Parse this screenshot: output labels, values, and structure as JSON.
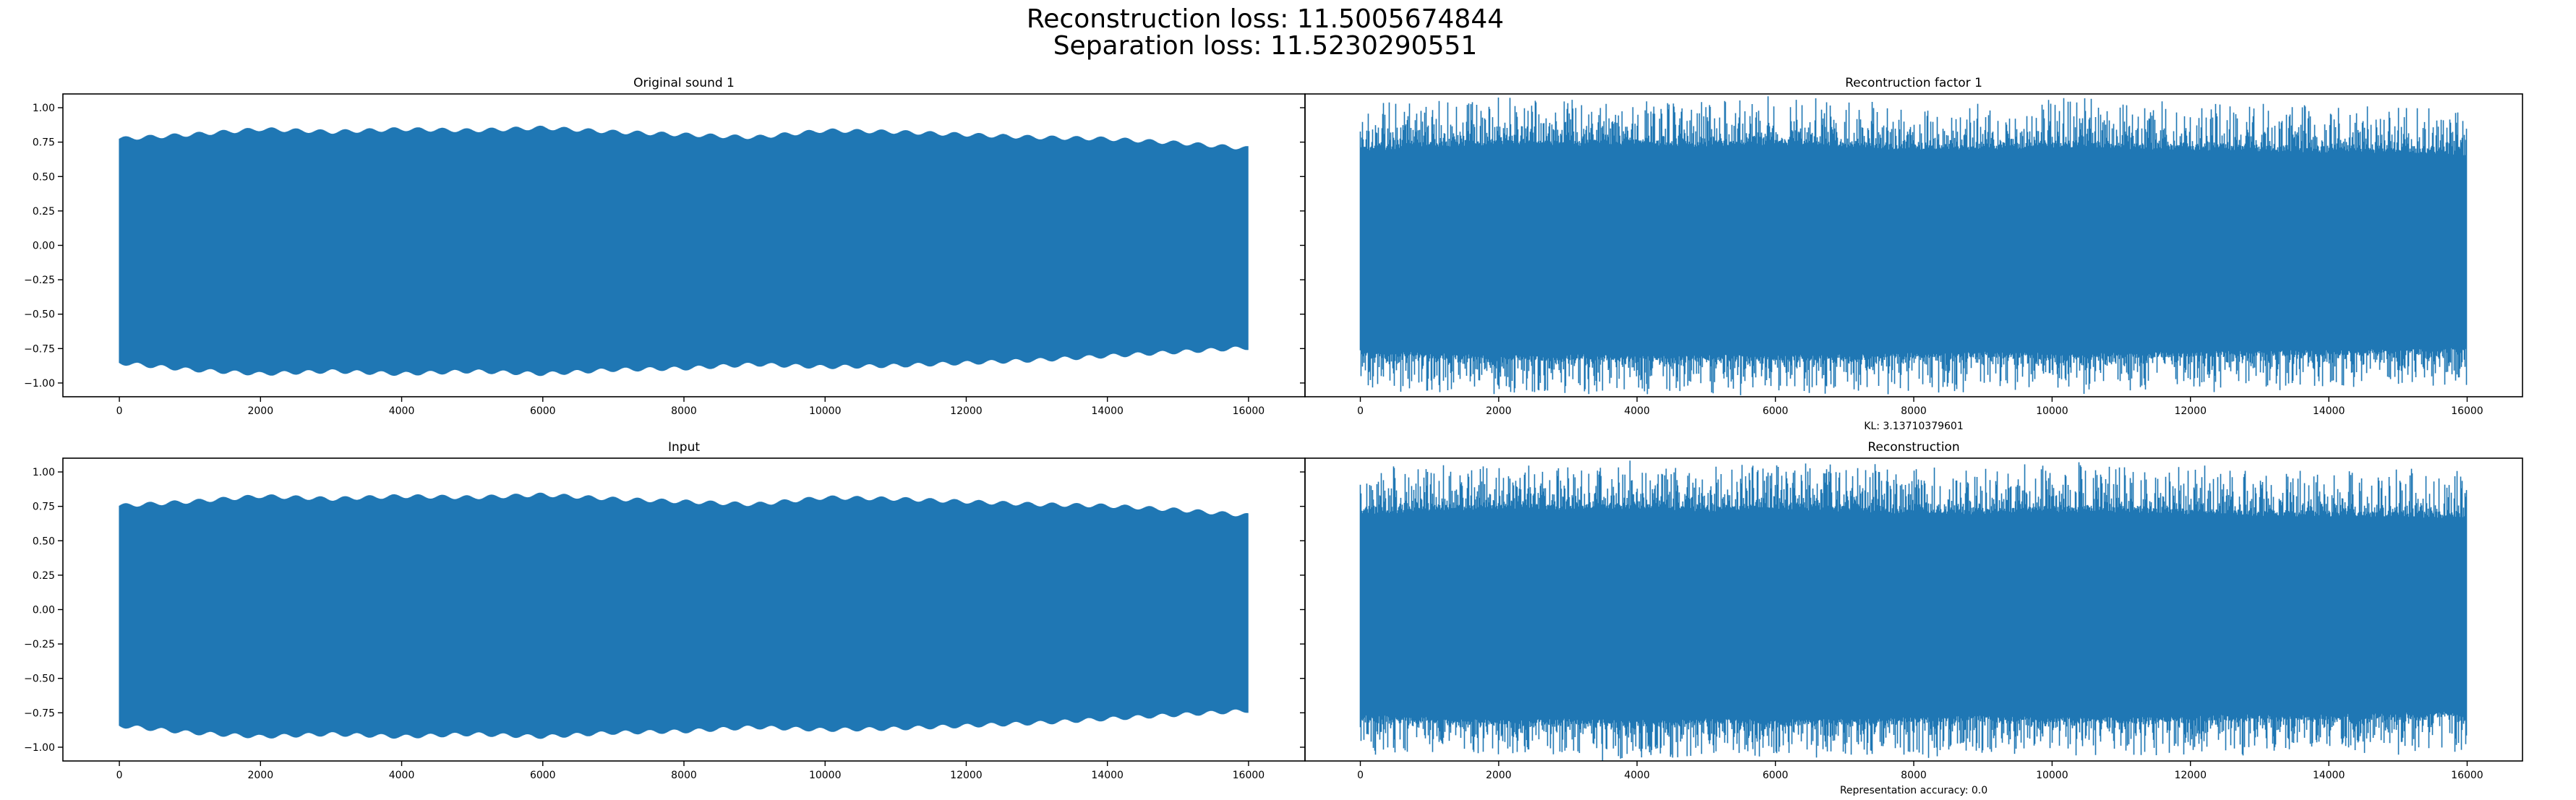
{
  "suptitle": {
    "line1": "Reconstruction loss: 11.5005674844",
    "line2": "Separation loss: 11.5230290551"
  },
  "colors": {
    "series": "#1f77b4",
    "axes": "#000000",
    "background": "#ffffff"
  },
  "chart_data": [
    {
      "id": "orig",
      "type": "line",
      "title": "Original sound 1",
      "xlabel": "",
      "ylabel": "",
      "n_samples": 16000,
      "xlim": [
        -800,
        16800
      ],
      "ylim": [
        -1.1,
        1.1
      ],
      "xticks": [
        0,
        2000,
        4000,
        6000,
        8000,
        10000,
        12000,
        14000,
        16000
      ],
      "yticks": [
        -1.0,
        -0.75,
        -0.5,
        -0.25,
        0.0,
        0.25,
        0.5,
        0.75,
        1.0
      ],
      "ytick_labels": [
        "−1.00",
        "−0.75",
        "−0.50",
        "−0.25",
        "0.00",
        "0.25",
        "0.50",
        "0.75",
        "1.00"
      ],
      "envelope_x": [
        0,
        1000,
        2000,
        3000,
        4000,
        5000,
        6000,
        7000,
        8000,
        9000,
        10000,
        11000,
        12000,
        13000,
        14000,
        15000,
        16000
      ],
      "envelope_upper": [
        0.79,
        0.82,
        0.86,
        0.84,
        0.86,
        0.85,
        0.87,
        0.84,
        0.82,
        0.8,
        0.85,
        0.84,
        0.82,
        0.8,
        0.79,
        0.76,
        0.72
      ],
      "envelope_lower": [
        -0.87,
        -0.92,
        -0.95,
        -0.93,
        -0.95,
        -0.93,
        -0.95,
        -0.92,
        -0.91,
        -0.88,
        -0.9,
        -0.89,
        -0.87,
        -0.85,
        -0.82,
        -0.79,
        -0.76
      ],
      "grid": false,
      "legend": "none",
      "show_yticklabels": true
    },
    {
      "id": "recfac",
      "type": "line",
      "title": "Recontruction factor 1",
      "xlabel": "KL: 3.13710379601",
      "ylabel": "",
      "n_samples": 16000,
      "xlim": [
        -800,
        16800
      ],
      "ylim": [
        -1.1,
        1.1
      ],
      "xticks": [
        0,
        2000,
        4000,
        6000,
        8000,
        10000,
        12000,
        14000,
        16000
      ],
      "envelope_x": [
        0,
        1000,
        2000,
        3000,
        4000,
        5000,
        6000,
        7000,
        8000,
        9000,
        10000,
        11000,
        12000,
        13000,
        14000,
        15000,
        16000
      ],
      "envelope_upper": [
        0.75,
        0.78,
        0.8,
        0.79,
        0.8,
        0.78,
        0.8,
        0.78,
        0.76,
        0.76,
        0.78,
        0.77,
        0.76,
        0.75,
        0.74,
        0.74,
        0.72
      ],
      "envelope_lower": [
        -0.82,
        -0.84,
        -0.86,
        -0.85,
        -0.86,
        -0.85,
        -0.86,
        -0.85,
        -0.84,
        -0.83,
        -0.84,
        -0.84,
        -0.83,
        -0.82,
        -0.82,
        -0.81,
        -0.8
      ],
      "grid": false,
      "legend": "none",
      "show_yticklabels": false
    },
    {
      "id": "input",
      "type": "line",
      "title": "Input",
      "xlabel": "",
      "ylabel": "",
      "n_samples": 16000,
      "xlim": [
        -800,
        16800
      ],
      "ylim": [
        -1.1,
        1.1
      ],
      "xticks": [
        0,
        2000,
        4000,
        6000,
        8000,
        10000,
        12000,
        14000,
        16000
      ],
      "yticks": [
        -1.0,
        -0.75,
        -0.5,
        -0.25,
        0.0,
        0.25,
        0.5,
        0.75,
        1.0
      ],
      "ytick_labels": [
        "−1.00",
        "−0.75",
        "−0.50",
        "−0.25",
        "0.00",
        "0.25",
        "0.50",
        "0.75",
        "1.00"
      ],
      "envelope_x": [
        0,
        1000,
        2000,
        3000,
        4000,
        5000,
        6000,
        7000,
        8000,
        9000,
        10000,
        11000,
        12000,
        13000,
        14000,
        15000,
        16000
      ],
      "envelope_upper": [
        0.77,
        0.8,
        0.84,
        0.82,
        0.84,
        0.83,
        0.85,
        0.82,
        0.8,
        0.78,
        0.83,
        0.82,
        0.8,
        0.78,
        0.77,
        0.74,
        0.7
      ],
      "envelope_lower": [
        -0.86,
        -0.91,
        -0.94,
        -0.92,
        -0.94,
        -0.92,
        -0.94,
        -0.91,
        -0.9,
        -0.87,
        -0.89,
        -0.88,
        -0.86,
        -0.84,
        -0.81,
        -0.78,
        -0.75
      ],
      "grid": false,
      "legend": "none",
      "show_yticklabels": true
    },
    {
      "id": "recon",
      "type": "line",
      "title": "Reconstruction",
      "xlabel": "Representation accuracy: 0.0",
      "ylabel": "",
      "n_samples": 16000,
      "xlim": [
        -800,
        16800
      ],
      "ylim": [
        -1.1,
        1.1
      ],
      "xticks": [
        0,
        2000,
        4000,
        6000,
        8000,
        10000,
        12000,
        14000,
        16000
      ],
      "envelope_x": [
        0,
        1000,
        2000,
        3000,
        4000,
        5000,
        6000,
        7000,
        8000,
        9000,
        10000,
        11000,
        12000,
        13000,
        14000,
        15000,
        16000
      ],
      "envelope_upper": [
        0.75,
        0.78,
        0.8,
        0.79,
        0.8,
        0.78,
        0.8,
        0.78,
        0.76,
        0.76,
        0.78,
        0.77,
        0.76,
        0.75,
        0.74,
        0.74,
        0.72
      ],
      "envelope_lower": [
        -0.82,
        -0.84,
        -0.86,
        -0.85,
        -0.86,
        -0.85,
        -0.86,
        -0.85,
        -0.84,
        -0.83,
        -0.84,
        -0.84,
        -0.83,
        -0.82,
        -0.82,
        -0.81,
        -0.8
      ],
      "grid": false,
      "legend": "none",
      "show_yticklabels": false
    }
  ]
}
